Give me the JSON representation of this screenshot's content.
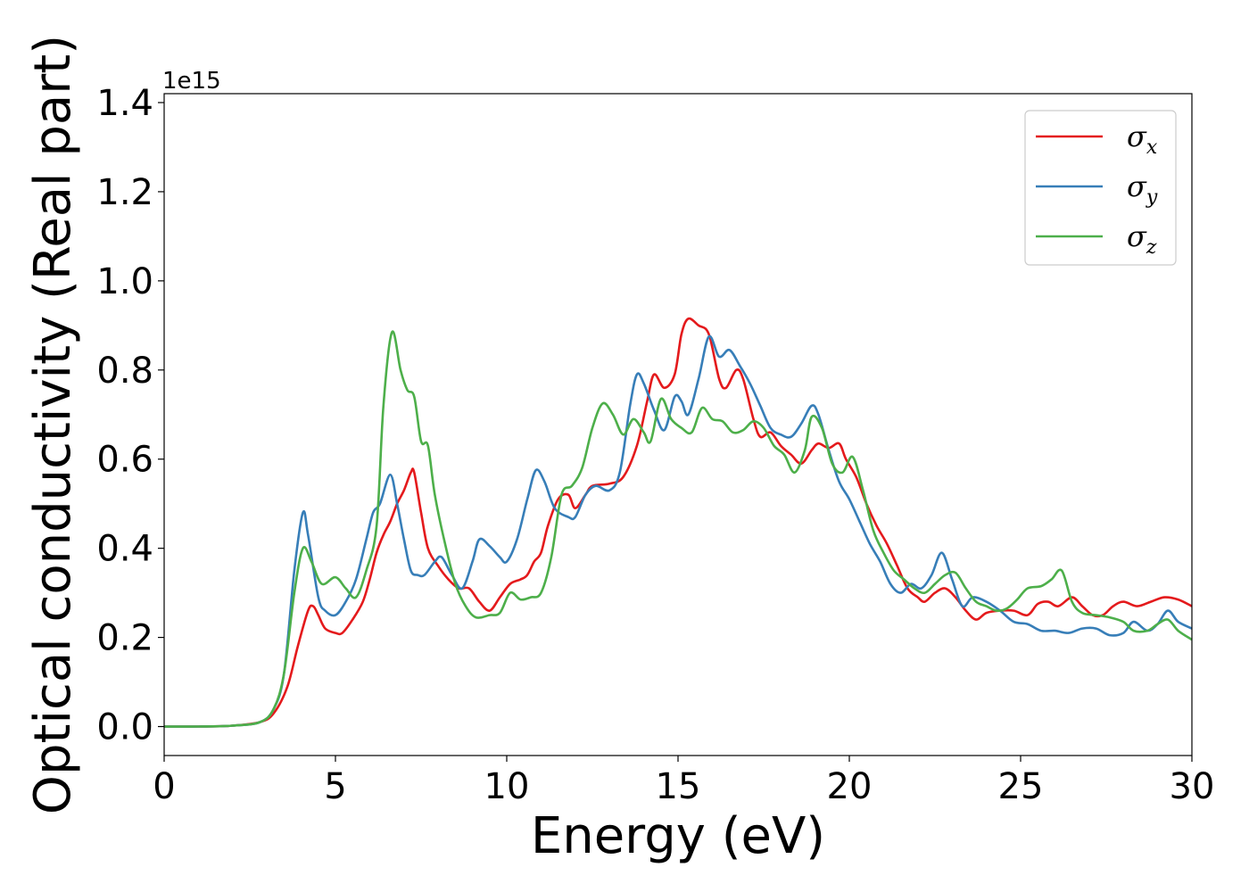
{
  "chart_data": {
    "type": "line",
    "xlabel": "Energy (eV)",
    "ylabel": "Optical conductivity (Real part)",
    "y_offset_label": "1e15",
    "xlim": [
      0,
      30
    ],
    "ylim": [
      -0.065,
      1.42
    ],
    "x_ticks": [
      0,
      5,
      10,
      15,
      20,
      25,
      30
    ],
    "x_tick_labels": [
      "0",
      "5",
      "10",
      "15",
      "20",
      "25",
      "30"
    ],
    "y_ticks": [
      0.0,
      0.2,
      0.4,
      0.6,
      0.8,
      1.0,
      1.2,
      1.4
    ],
    "y_tick_labels": [
      "0.0",
      "0.2",
      "0.4",
      "0.6",
      "0.8",
      "1.0",
      "1.2",
      "1.4"
    ],
    "grid": false,
    "legend_position": "top-right",
    "series": [
      {
        "name": "σx",
        "symbol": "σ",
        "subscript": "x",
        "color": "#e41a1c",
        "points": [
          [
            0,
            0
          ],
          [
            1,
            0
          ],
          [
            2,
            0.002
          ],
          [
            2.8,
            0.01
          ],
          [
            3.2,
            0.03
          ],
          [
            3.6,
            0.09
          ],
          [
            3.9,
            0.18
          ],
          [
            4.2,
            0.26
          ],
          [
            4.35,
            0.27
          ],
          [
            4.5,
            0.25
          ],
          [
            4.7,
            0.22
          ],
          [
            5.0,
            0.21
          ],
          [
            5.2,
            0.21
          ],
          [
            5.5,
            0.24
          ],
          [
            5.8,
            0.28
          ],
          [
            6.0,
            0.33
          ],
          [
            6.2,
            0.39
          ],
          [
            6.4,
            0.43
          ],
          [
            6.6,
            0.46
          ],
          [
            6.8,
            0.5
          ],
          [
            7.0,
            0.53
          ],
          [
            7.2,
            0.57
          ],
          [
            7.3,
            0.57
          ],
          [
            7.5,
            0.48
          ],
          [
            7.7,
            0.4
          ],
          [
            8.0,
            0.36
          ],
          [
            8.3,
            0.33
          ],
          [
            8.6,
            0.31
          ],
          [
            8.9,
            0.31
          ],
          [
            9.2,
            0.28
          ],
          [
            9.5,
            0.26
          ],
          [
            9.8,
            0.29
          ],
          [
            10.1,
            0.32
          ],
          [
            10.4,
            0.33
          ],
          [
            10.6,
            0.34
          ],
          [
            10.8,
            0.37
          ],
          [
            11.0,
            0.39
          ],
          [
            11.2,
            0.45
          ],
          [
            11.5,
            0.51
          ],
          [
            11.8,
            0.52
          ],
          [
            12.0,
            0.49
          ],
          [
            12.3,
            0.52
          ],
          [
            12.5,
            0.54
          ],
          [
            13.0,
            0.545
          ],
          [
            13.4,
            0.56
          ],
          [
            13.8,
            0.63
          ],
          [
            14.1,
            0.73
          ],
          [
            14.3,
            0.79
          ],
          [
            14.6,
            0.76
          ],
          [
            14.9,
            0.79
          ],
          [
            15.1,
            0.88
          ],
          [
            15.3,
            0.915
          ],
          [
            15.6,
            0.9
          ],
          [
            15.9,
            0.88
          ],
          [
            16.2,
            0.78
          ],
          [
            16.4,
            0.76
          ],
          [
            16.7,
            0.8
          ],
          [
            16.9,
            0.78
          ],
          [
            17.2,
            0.69
          ],
          [
            17.4,
            0.65
          ],
          [
            17.7,
            0.66
          ],
          [
            18.0,
            0.63
          ],
          [
            18.3,
            0.61
          ],
          [
            18.6,
            0.59
          ],
          [
            18.9,
            0.62
          ],
          [
            19.1,
            0.635
          ],
          [
            19.4,
            0.625
          ],
          [
            19.7,
            0.635
          ],
          [
            19.9,
            0.6
          ],
          [
            20.2,
            0.56
          ],
          [
            20.5,
            0.5
          ],
          [
            20.8,
            0.45
          ],
          [
            21.1,
            0.41
          ],
          [
            21.4,
            0.36
          ],
          [
            21.7,
            0.31
          ],
          [
            22.0,
            0.29
          ],
          [
            22.2,
            0.28
          ],
          [
            22.5,
            0.3
          ],
          [
            22.8,
            0.31
          ],
          [
            23.1,
            0.29
          ],
          [
            23.4,
            0.26
          ],
          [
            23.7,
            0.24
          ],
          [
            24.0,
            0.255
          ],
          [
            24.4,
            0.26
          ],
          [
            24.8,
            0.26
          ],
          [
            25.2,
            0.25
          ],
          [
            25.5,
            0.275
          ],
          [
            25.8,
            0.28
          ],
          [
            26.1,
            0.27
          ],
          [
            26.5,
            0.29
          ],
          [
            26.8,
            0.27
          ],
          [
            27.1,
            0.25
          ],
          [
            27.4,
            0.25
          ],
          [
            27.7,
            0.27
          ],
          [
            28.0,
            0.28
          ],
          [
            28.4,
            0.27
          ],
          [
            28.8,
            0.28
          ],
          [
            29.2,
            0.29
          ],
          [
            29.6,
            0.285
          ],
          [
            30.0,
            0.27
          ]
        ]
      },
      {
        "name": "σy",
        "symbol": "σ",
        "subscript": "y",
        "color": "#377eb8",
        "points": [
          [
            0,
            0
          ],
          [
            1,
            0
          ],
          [
            2,
            0.002
          ],
          [
            2.8,
            0.01
          ],
          [
            3.2,
            0.04
          ],
          [
            3.5,
            0.12
          ],
          [
            3.8,
            0.35
          ],
          [
            4.05,
            0.48
          ],
          [
            4.2,
            0.43
          ],
          [
            4.5,
            0.29
          ],
          [
            4.7,
            0.26
          ],
          [
            5.0,
            0.25
          ],
          [
            5.3,
            0.28
          ],
          [
            5.6,
            0.33
          ],
          [
            5.9,
            0.42
          ],
          [
            6.1,
            0.48
          ],
          [
            6.3,
            0.5
          ],
          [
            6.6,
            0.565
          ],
          [
            6.8,
            0.5
          ],
          [
            7.0,
            0.42
          ],
          [
            7.2,
            0.35
          ],
          [
            7.4,
            0.34
          ],
          [
            7.6,
            0.34
          ],
          [
            7.9,
            0.37
          ],
          [
            8.1,
            0.38
          ],
          [
            8.4,
            0.34
          ],
          [
            8.7,
            0.31
          ],
          [
            9.0,
            0.37
          ],
          [
            9.2,
            0.42
          ],
          [
            9.5,
            0.405
          ],
          [
            9.8,
            0.38
          ],
          [
            10.0,
            0.37
          ],
          [
            10.3,
            0.42
          ],
          [
            10.6,
            0.51
          ],
          [
            10.85,
            0.575
          ],
          [
            11.1,
            0.55
          ],
          [
            11.4,
            0.49
          ],
          [
            11.8,
            0.47
          ],
          [
            12.0,
            0.47
          ],
          [
            12.3,
            0.52
          ],
          [
            12.6,
            0.54
          ],
          [
            13.0,
            0.53
          ],
          [
            13.3,
            0.57
          ],
          [
            13.6,
            0.72
          ],
          [
            13.8,
            0.79
          ],
          [
            14.0,
            0.77
          ],
          [
            14.3,
            0.71
          ],
          [
            14.6,
            0.665
          ],
          [
            14.9,
            0.74
          ],
          [
            15.1,
            0.73
          ],
          [
            15.3,
            0.7
          ],
          [
            15.6,
            0.78
          ],
          [
            15.9,
            0.875
          ],
          [
            16.2,
            0.83
          ],
          [
            16.5,
            0.845
          ],
          [
            16.8,
            0.81
          ],
          [
            17.1,
            0.77
          ],
          [
            17.4,
            0.72
          ],
          [
            17.7,
            0.67
          ],
          [
            18.0,
            0.655
          ],
          [
            18.3,
            0.65
          ],
          [
            18.6,
            0.68
          ],
          [
            18.9,
            0.72
          ],
          [
            19.1,
            0.7
          ],
          [
            19.4,
            0.62
          ],
          [
            19.7,
            0.55
          ],
          [
            20.0,
            0.51
          ],
          [
            20.3,
            0.46
          ],
          [
            20.6,
            0.41
          ],
          [
            20.9,
            0.37
          ],
          [
            21.2,
            0.32
          ],
          [
            21.5,
            0.3
          ],
          [
            21.8,
            0.32
          ],
          [
            22.1,
            0.31
          ],
          [
            22.4,
            0.34
          ],
          [
            22.7,
            0.39
          ],
          [
            23.0,
            0.33
          ],
          [
            23.3,
            0.27
          ],
          [
            23.6,
            0.29
          ],
          [
            24.0,
            0.28
          ],
          [
            24.4,
            0.26
          ],
          [
            24.8,
            0.235
          ],
          [
            25.2,
            0.23
          ],
          [
            25.6,
            0.215
          ],
          [
            26.0,
            0.215
          ],
          [
            26.4,
            0.21
          ],
          [
            26.8,
            0.22
          ],
          [
            27.2,
            0.22
          ],
          [
            27.6,
            0.205
          ],
          [
            28.0,
            0.21
          ],
          [
            28.3,
            0.235
          ],
          [
            28.7,
            0.215
          ],
          [
            29.0,
            0.23
          ],
          [
            29.3,
            0.26
          ],
          [
            29.6,
            0.235
          ],
          [
            30.0,
            0.22
          ]
        ]
      },
      {
        "name": "σz",
        "symbol": "σ",
        "subscript": "z",
        "color": "#4daf4a",
        "points": [
          [
            0,
            0
          ],
          [
            1,
            0
          ],
          [
            2,
            0.002
          ],
          [
            2.8,
            0.01
          ],
          [
            3.2,
            0.04
          ],
          [
            3.5,
            0.12
          ],
          [
            3.8,
            0.3
          ],
          [
            4.05,
            0.4
          ],
          [
            4.3,
            0.37
          ],
          [
            4.6,
            0.32
          ],
          [
            5.0,
            0.335
          ],
          [
            5.3,
            0.31
          ],
          [
            5.6,
            0.29
          ],
          [
            5.9,
            0.35
          ],
          [
            6.2,
            0.45
          ],
          [
            6.4,
            0.72
          ],
          [
            6.65,
            0.885
          ],
          [
            6.9,
            0.8
          ],
          [
            7.1,
            0.755
          ],
          [
            7.3,
            0.74
          ],
          [
            7.5,
            0.64
          ],
          [
            7.7,
            0.63
          ],
          [
            7.9,
            0.52
          ],
          [
            8.2,
            0.41
          ],
          [
            8.5,
            0.32
          ],
          [
            8.8,
            0.27
          ],
          [
            9.1,
            0.245
          ],
          [
            9.5,
            0.25
          ],
          [
            9.8,
            0.255
          ],
          [
            10.1,
            0.3
          ],
          [
            10.4,
            0.285
          ],
          [
            10.7,
            0.29
          ],
          [
            11.0,
            0.3
          ],
          [
            11.3,
            0.38
          ],
          [
            11.6,
            0.52
          ],
          [
            11.9,
            0.54
          ],
          [
            12.2,
            0.58
          ],
          [
            12.5,
            0.67
          ],
          [
            12.8,
            0.725
          ],
          [
            13.1,
            0.7
          ],
          [
            13.4,
            0.655
          ],
          [
            13.7,
            0.69
          ],
          [
            14.0,
            0.66
          ],
          [
            14.2,
            0.64
          ],
          [
            14.5,
            0.735
          ],
          [
            14.8,
            0.69
          ],
          [
            15.1,
            0.67
          ],
          [
            15.4,
            0.66
          ],
          [
            15.7,
            0.715
          ],
          [
            16.0,
            0.69
          ],
          [
            16.3,
            0.685
          ],
          [
            16.6,
            0.66
          ],
          [
            16.9,
            0.665
          ],
          [
            17.2,
            0.685
          ],
          [
            17.5,
            0.67
          ],
          [
            17.8,
            0.63
          ],
          [
            18.1,
            0.61
          ],
          [
            18.4,
            0.57
          ],
          [
            18.7,
            0.62
          ],
          [
            18.9,
            0.695
          ],
          [
            19.2,
            0.67
          ],
          [
            19.5,
            0.59
          ],
          [
            19.8,
            0.57
          ],
          [
            20.1,
            0.605
          ],
          [
            20.4,
            0.53
          ],
          [
            20.7,
            0.44
          ],
          [
            21.0,
            0.39
          ],
          [
            21.3,
            0.35
          ],
          [
            21.6,
            0.33
          ],
          [
            21.9,
            0.31
          ],
          [
            22.2,
            0.3
          ],
          [
            22.5,
            0.32
          ],
          [
            22.8,
            0.34
          ],
          [
            23.1,
            0.345
          ],
          [
            23.4,
            0.31
          ],
          [
            23.7,
            0.28
          ],
          [
            24.0,
            0.27
          ],
          [
            24.3,
            0.26
          ],
          [
            24.6,
            0.265
          ],
          [
            24.9,
            0.285
          ],
          [
            25.2,
            0.31
          ],
          [
            25.6,
            0.315
          ],
          [
            25.9,
            0.33
          ],
          [
            26.2,
            0.35
          ],
          [
            26.5,
            0.28
          ],
          [
            26.8,
            0.255
          ],
          [
            27.2,
            0.25
          ],
          [
            27.6,
            0.245
          ],
          [
            28.0,
            0.235
          ],
          [
            28.3,
            0.215
          ],
          [
            28.7,
            0.215
          ],
          [
            29.0,
            0.23
          ],
          [
            29.3,
            0.24
          ],
          [
            29.6,
            0.215
          ],
          [
            30.0,
            0.195
          ]
        ]
      }
    ]
  }
}
